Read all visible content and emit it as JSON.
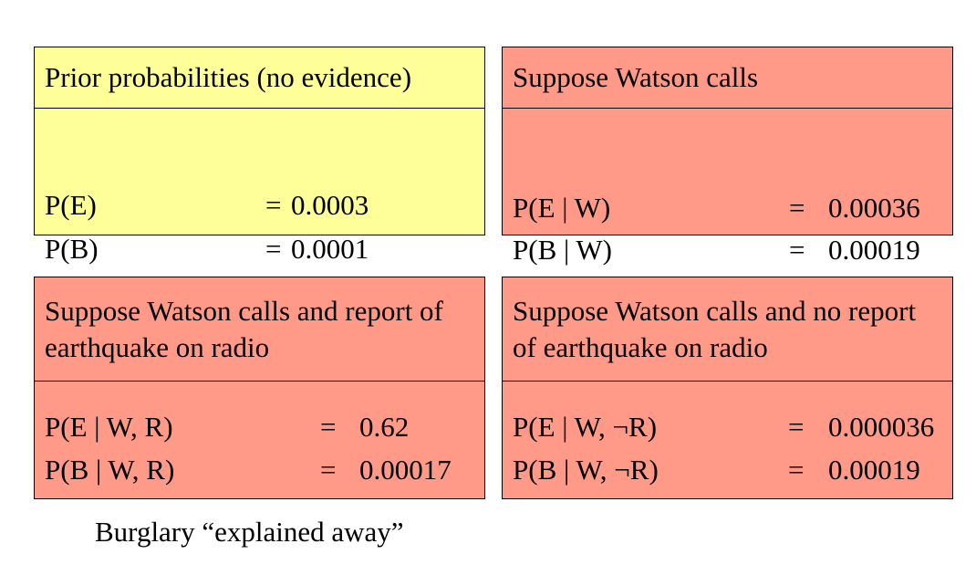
{
  "colors": {
    "prior_box": "#ffff99",
    "evidence_box": "#ff9988",
    "border": "#000000"
  },
  "boxes": [
    {
      "title_lines": [
        "Prior probabilities (no evidence)"
      ],
      "rows": [
        {
          "label": "P(E)",
          "eq": "=",
          "value": "0.0003"
        },
        {
          "label": "P(B)",
          "eq": "=",
          "value": "0.0001"
        }
      ]
    },
    {
      "title_lines": [
        "Suppose Watson calls"
      ],
      "rows": [
        {
          "label": "P(E | W)",
          "eq": "=",
          "value": "0.00036"
        },
        {
          "label": "P(B | W)",
          "eq": "=",
          "value": "0.00019"
        }
      ]
    },
    {
      "title_lines": [
        "Suppose Watson calls and report of",
        "earthquake on radio"
      ],
      "rows": [
        {
          "label": "P(E | W, R)",
          "eq": "=",
          "value": "0.62"
        },
        {
          "label": "P(B | W, R)",
          "eq": "=",
          "value": "0.00017"
        }
      ]
    },
    {
      "title_lines": [
        "Suppose Watson calls and no report",
        "of earthquake on radio"
      ],
      "rows": [
        {
          "label": "P(E | W, ¬R)",
          "eq": "=",
          "value": "0.000036"
        },
        {
          "label": "P(B | W, ¬R)",
          "eq": "=",
          "value": "0.00019"
        }
      ]
    }
  ],
  "caption": "Burglary “explained away”"
}
